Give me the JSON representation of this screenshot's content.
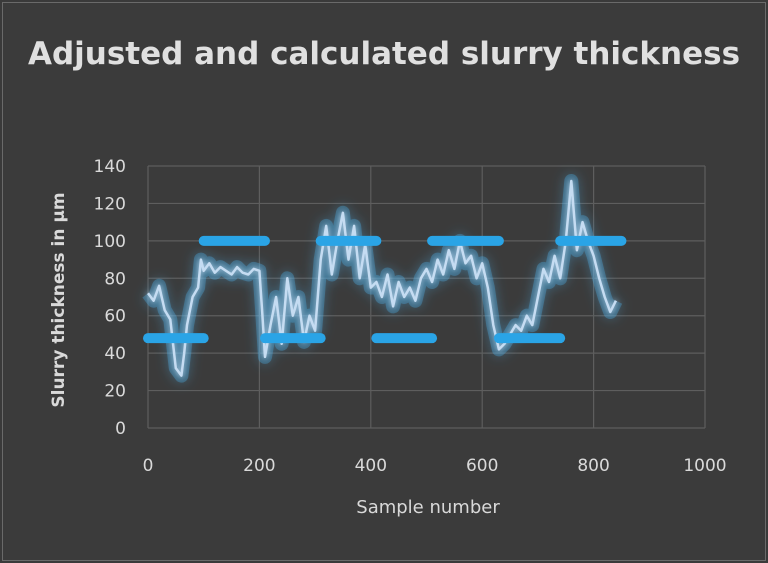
{
  "chart_data": {
    "type": "line",
    "title": "Adjusted and calculated slurry thickness",
    "xlabel": "Sample number",
    "ylabel": "Slurry  thickness  in  µm",
    "xlim": [
      0,
      1000
    ],
    "ylim": [
      0,
      140
    ],
    "x_ticks": [
      0,
      200,
      400,
      600,
      800,
      1000
    ],
    "y_ticks": [
      0,
      20,
      40,
      60,
      80,
      100,
      120,
      140
    ],
    "grid": true,
    "legend": "none",
    "colors": {
      "calculated": "#c5dcf2",
      "adjusted": "#2aa4e6",
      "background": "#3b3b3b",
      "grid": "#5e5e5e",
      "text": "#d9d9d9"
    },
    "series": [
      {
        "key": "adjusted",
        "style": "step",
        "segments": [
          {
            "x": [
              0,
              100
            ],
            "y": 48
          },
          {
            "x": [
              100,
              210
            ],
            "y": 100
          },
          {
            "x": [
              210,
              310
            ],
            "y": 48
          },
          {
            "x": [
              310,
              410
            ],
            "y": 100
          },
          {
            "x": [
              410,
              510
            ],
            "y": 48
          },
          {
            "x": [
              510,
              630
            ],
            "y": 100
          },
          {
            "x": [
              630,
              740
            ],
            "y": 48
          },
          {
            "x": [
              740,
              850
            ],
            "y": 100
          }
        ]
      },
      {
        "key": "calculated",
        "style": "line",
        "x": [
          0,
          10,
          20,
          30,
          40,
          50,
          60,
          65,
          70,
          80,
          90,
          95,
          100,
          110,
          120,
          130,
          140,
          150,
          160,
          170,
          180,
          190,
          200,
          205,
          210,
          220,
          230,
          240,
          250,
          260,
          270,
          280,
          290,
          300,
          310,
          320,
          330,
          340,
          350,
          360,
          370,
          380,
          390,
          400,
          410,
          420,
          430,
          440,
          450,
          460,
          470,
          480,
          490,
          500,
          510,
          520,
          530,
          540,
          550,
          560,
          570,
          580,
          590,
          600,
          610,
          620,
          630,
          640,
          650,
          660,
          670,
          680,
          690,
          700,
          710,
          720,
          730,
          740,
          750,
          760,
          770,
          780,
          790,
          800,
          810,
          820,
          830,
          840
        ],
        "y": [
          72,
          68,
          76,
          63,
          58,
          32,
          28,
          40,
          55,
          70,
          75,
          90,
          84,
          88,
          83,
          86,
          84,
          82,
          86,
          83,
          82,
          85,
          84,
          62,
          38,
          55,
          70,
          45,
          80,
          60,
          70,
          46,
          60,
          52,
          90,
          108,
          82,
          100,
          115,
          90,
          108,
          80,
          98,
          75,
          78,
          70,
          82,
          65,
          78,
          70,
          75,
          68,
          80,
          85,
          78,
          90,
          82,
          95,
          85,
          100,
          88,
          92,
          80,
          88,
          75,
          55,
          42,
          45,
          50,
          55,
          52,
          60,
          55,
          70,
          85,
          78,
          92,
          80,
          100,
          132,
          95,
          110,
          100,
          92,
          80,
          70,
          62,
          68
        ]
      }
    ]
  }
}
